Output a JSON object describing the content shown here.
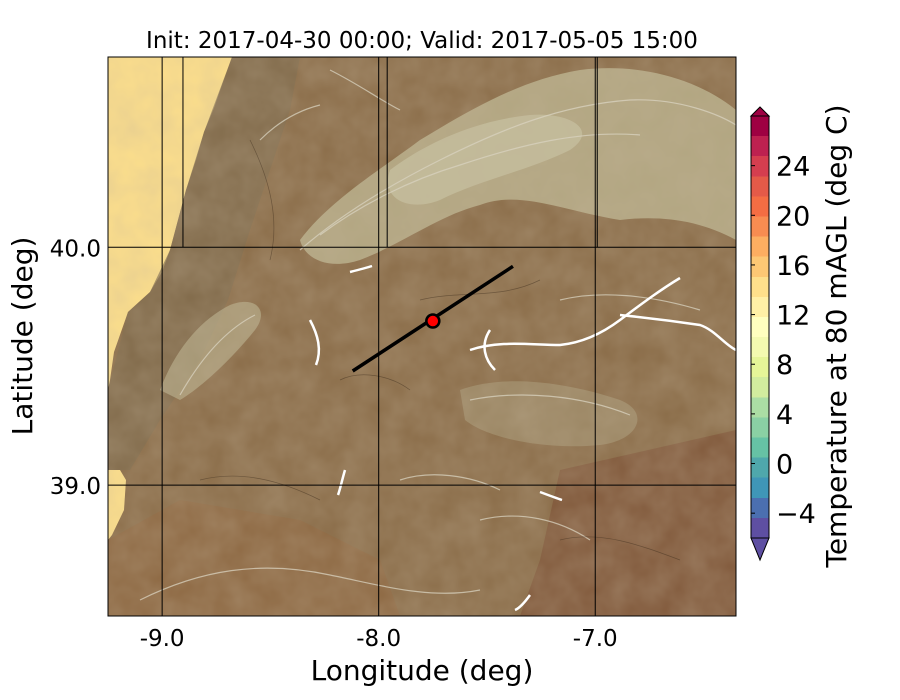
{
  "title": "Init: 2017-04-30 00:00; Valid: 2017-05-05 15:00",
  "map": {
    "xlabel": "Longitude (deg)",
    "ylabel": "Latitude (deg)",
    "xlim": [
      -9.25,
      -6.35
    ],
    "ylim": [
      38.45,
      40.8
    ],
    "xticks": [
      {
        "value": -9.0,
        "label": "-9.0"
      },
      {
        "value": -8.0,
        "label": "-8.0"
      },
      {
        "value": -7.0,
        "label": "-7.0"
      }
    ],
    "yticks": [
      {
        "value": 40.0,
        "label": "40.0"
      },
      {
        "value": 39.0,
        "label": "39.0"
      }
    ],
    "gridlines": true,
    "transect": {
      "start": [
        -8.12,
        39.48
      ],
      "end": [
        -7.38,
        39.92
      ]
    },
    "marker": {
      "lon": -7.75,
      "lat": 39.69,
      "color": "#ff0000"
    }
  },
  "colorbar": {
    "label": "Temperature at 80 mAGL (deg C)",
    "range": [
      -6,
      28
    ],
    "ticks": [
      {
        "value": -4,
        "label": "−4"
      },
      {
        "value": 0,
        "label": "0"
      },
      {
        "value": 4,
        "label": "4"
      },
      {
        "value": 8,
        "label": "8"
      },
      {
        "value": 12,
        "label": "12"
      },
      {
        "value": 16,
        "label": "16"
      },
      {
        "value": 20,
        "label": "20"
      },
      {
        "value": 24,
        "label": "24"
      }
    ],
    "colors": [
      "#5e4fa2",
      "#4b6fb0",
      "#3f96b7",
      "#4fa8ac",
      "#66c2a5",
      "#8ad0a4",
      "#abdda4",
      "#d2ec9e",
      "#e6f598",
      "#f4fab0",
      "#ffffbf",
      "#fff0a6",
      "#fee08b",
      "#fdc874",
      "#fdae61",
      "#f88c51",
      "#f46d43",
      "#e45a48",
      "#d53e4f",
      "#bd2150",
      "#9e0142"
    ]
  },
  "terrain": {
    "ocean_color": "#fee08b",
    "lowland_color": "#8b6a45",
    "highland_color": "#b8b08c",
    "river_color": "#ffffff"
  }
}
